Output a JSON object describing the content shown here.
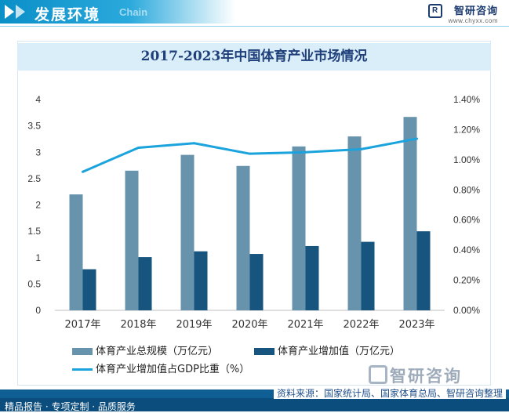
{
  "header": {
    "title": "发展环境",
    "subtitle": "Chain",
    "brand_name": "智研咨询",
    "brand_url": "www.chyxx.com"
  },
  "chart_data": {
    "type": "bar",
    "title": "2017-2023年中国体育产业市场情况",
    "categories": [
      "2017年",
      "2018年",
      "2019年",
      "2020年",
      "2021年",
      "2022年",
      "2023年"
    ],
    "series": [
      {
        "name": "体育产业总规模（万亿元）",
        "type": "bar",
        "axis": "left",
        "color": "#6893ad",
        "values": [
          2.2,
          2.65,
          2.95,
          2.74,
          3.11,
          3.3,
          3.67
        ]
      },
      {
        "name": "体育产业增加值（万亿元）",
        "type": "bar",
        "axis": "left",
        "color": "#17557e",
        "values": [
          0.78,
          1.01,
          1.12,
          1.07,
          1.22,
          1.3,
          1.5
        ]
      },
      {
        "name": "体育产业增加值占GDP比重（%）",
        "type": "line",
        "axis": "right",
        "color": "#1aa3dc",
        "values": [
          0.92,
          1.08,
          1.11,
          1.04,
          1.05,
          1.07,
          1.14
        ]
      }
    ],
    "y_left": {
      "min": 0,
      "max": 4,
      "ticks": [
        "0",
        "0.5",
        "1",
        "1.5",
        "2",
        "2.5",
        "3",
        "3.5",
        "4"
      ]
    },
    "y_right": {
      "min": 0,
      "max": 1.4,
      "ticks": [
        "0.00%",
        "0.20%",
        "0.40%",
        "0.60%",
        "0.80%",
        "1.00%",
        "1.20%",
        "1.40%"
      ]
    },
    "grid": false,
    "legend_position": "bottom-left"
  },
  "footer": {
    "left_text": "精品报告 · 专项定制 · 品质服务",
    "source": "资料来源：国家统计局、国家体育总局、智研咨询整理",
    "watermark_brand": "智研咨询"
  }
}
